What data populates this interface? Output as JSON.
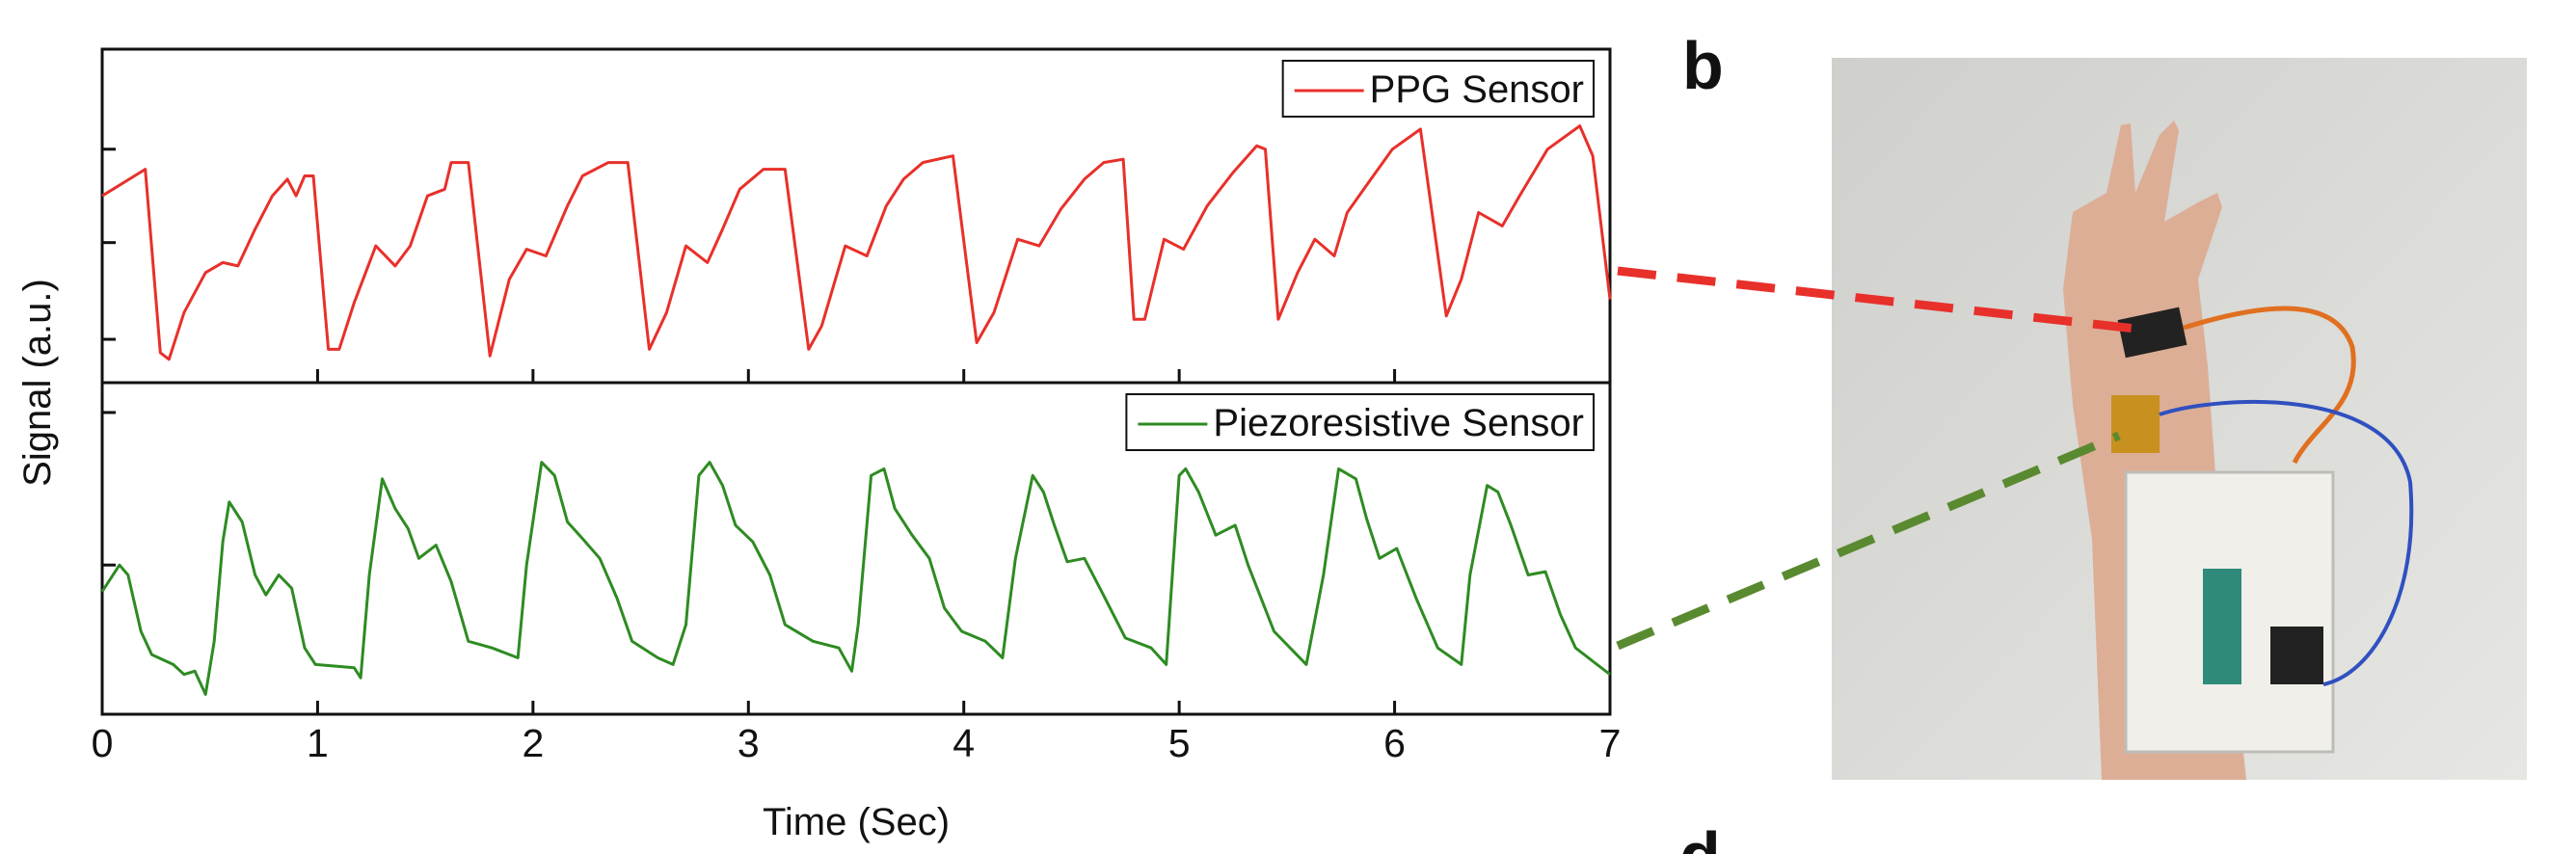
{
  "figure": {
    "ylabel": "Signal (a.u.)",
    "xlabel": "Time (Sec)",
    "panel_labels": [
      "b",
      "d"
    ]
  },
  "chart_data": [
    {
      "type": "line",
      "x": [
        0,
        0.2,
        0.27,
        0.31,
        0.38,
        0.48,
        0.56,
        0.63,
        0.71,
        0.79,
        0.86,
        0.9,
        0.94,
        0.98,
        1.05,
        1.1,
        1.17,
        1.27,
        1.36,
        1.43,
        1.51,
        1.59,
        1.62,
        1.7,
        1.8,
        1.89,
        1.97,
        2.06,
        2.16,
        2.23,
        2.35,
        2.44,
        2.54,
        2.62,
        2.71,
        2.81,
        2.88,
        2.96,
        3.07,
        3.17,
        3.28,
        3.34,
        3.45,
        3.55,
        3.64,
        3.72,
        3.81,
        3.95,
        4.06,
        4.14,
        4.25,
        4.35,
        4.45,
        4.56,
        4.65,
        4.74,
        4.79,
        4.84,
        4.93,
        5.02,
        5.13,
        5.25,
        5.36,
        5.4,
        5.46,
        5.55,
        5.63,
        5.72,
        5.78,
        5.89,
        5.99,
        6.12,
        6.24,
        6.31,
        6.39,
        6.5,
        6.58,
        6.71,
        6.86,
        6.92,
        7.0
      ],
      "series": [
        {
          "name": "PPG Sensor",
          "color": "#e8302a",
          "values": [
            0.56,
            0.64,
            0.09,
            0.07,
            0.21,
            0.33,
            0.36,
            0.35,
            0.46,
            0.56,
            0.61,
            0.56,
            0.62,
            0.62,
            0.1,
            0.1,
            0.24,
            0.41,
            0.35,
            0.41,
            0.56,
            0.58,
            0.66,
            0.66,
            0.08,
            0.31,
            0.4,
            0.38,
            0.53,
            0.62,
            0.66,
            0.66,
            0.1,
            0.21,
            0.41,
            0.36,
            0.46,
            0.58,
            0.64,
            0.64,
            0.1,
            0.17,
            0.41,
            0.38,
            0.53,
            0.61,
            0.66,
            0.68,
            0.12,
            0.21,
            0.43,
            0.41,
            0.52,
            0.61,
            0.66,
            0.67,
            0.19,
            0.19,
            0.43,
            0.4,
            0.53,
            0.63,
            0.71,
            0.7,
            0.19,
            0.33,
            0.43,
            0.38,
            0.51,
            0.61,
            0.7,
            0.76,
            0.2,
            0.31,
            0.51,
            0.47,
            0.56,
            0.7,
            0.77,
            0.68,
            0.25
          ]
        }
      ],
      "xlim": [
        0,
        7
      ],
      "xticks": [
        0,
        1,
        2,
        3,
        4,
        5,
        6,
        7
      ],
      "ylim": [
        0,
        1
      ],
      "yticks": [
        0.13,
        0.42,
        0.7
      ],
      "legend": "upper right"
    },
    {
      "type": "line",
      "x": [
        0,
        0.08,
        0.12,
        0.18,
        0.23,
        0.33,
        0.38,
        0.43,
        0.48,
        0.52,
        0.56,
        0.59,
        0.65,
        0.71,
        0.76,
        0.82,
        0.88,
        0.94,
        0.99,
        1.17,
        1.2,
        1.24,
        1.3,
        1.36,
        1.42,
        1.47,
        1.55,
        1.62,
        1.7,
        1.81,
        1.93,
        1.97,
        2.04,
        2.1,
        2.16,
        2.23,
        2.31,
        2.39,
        2.46,
        2.58,
        2.65,
        2.71,
        2.77,
        2.82,
        2.88,
        2.94,
        3.02,
        3.1,
        3.17,
        3.3,
        3.42,
        3.48,
        3.51,
        3.57,
        3.63,
        3.68,
        3.76,
        3.84,
        3.91,
        3.99,
        4.1,
        4.18,
        4.24,
        4.32,
        4.37,
        4.42,
        4.48,
        4.56,
        4.64,
        4.75,
        4.87,
        4.94,
        5.0,
        5.03,
        5.09,
        5.17,
        5.26,
        5.32,
        5.44,
        5.59,
        5.67,
        5.74,
        5.82,
        5.87,
        5.93,
        6.01,
        6.1,
        6.2,
        6.31,
        6.35,
        6.43,
        6.48,
        6.54,
        6.62,
        6.7,
        6.77,
        6.84,
        6.92,
        7.0
      ],
      "series": [
        {
          "name": "Piezoresistive Sensor",
          "color": "#2e8b22",
          "values": [
            0.37,
            0.45,
            0.42,
            0.25,
            0.18,
            0.15,
            0.12,
            0.13,
            0.06,
            0.22,
            0.52,
            0.64,
            0.58,
            0.42,
            0.36,
            0.42,
            0.38,
            0.2,
            0.15,
            0.14,
            0.11,
            0.42,
            0.71,
            0.62,
            0.56,
            0.47,
            0.51,
            0.4,
            0.22,
            0.2,
            0.17,
            0.45,
            0.76,
            0.72,
            0.58,
            0.53,
            0.47,
            0.35,
            0.22,
            0.17,
            0.15,
            0.27,
            0.72,
            0.76,
            0.69,
            0.57,
            0.52,
            0.42,
            0.27,
            0.22,
            0.2,
            0.13,
            0.27,
            0.72,
            0.74,
            0.62,
            0.54,
            0.47,
            0.32,
            0.25,
            0.22,
            0.17,
            0.47,
            0.72,
            0.67,
            0.57,
            0.46,
            0.47,
            0.37,
            0.23,
            0.2,
            0.15,
            0.72,
            0.74,
            0.67,
            0.54,
            0.57,
            0.45,
            0.25,
            0.15,
            0.42,
            0.74,
            0.71,
            0.59,
            0.47,
            0.5,
            0.35,
            0.2,
            0.15,
            0.42,
            0.69,
            0.67,
            0.57,
            0.42,
            0.43,
            0.3,
            0.2,
            0.16,
            0.12
          ]
        }
      ],
      "xlim": [
        0,
        7
      ],
      "xticks": [
        0,
        1,
        2,
        3,
        4,
        5,
        6,
        7
      ],
      "ylim": [
        0,
        1
      ],
      "yticks": [
        0.45,
        0.91
      ],
      "legend": "upper right"
    }
  ]
}
